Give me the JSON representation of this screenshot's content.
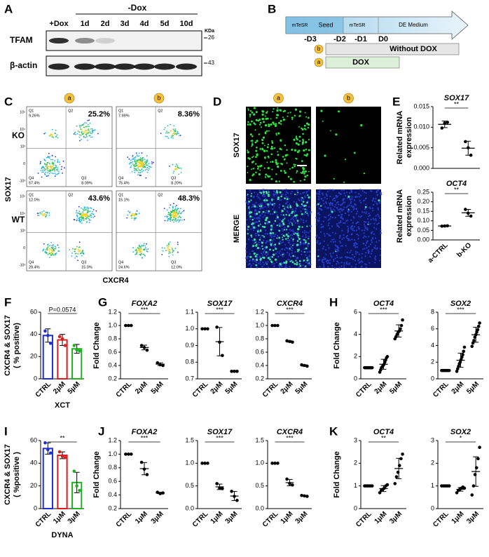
{
  "panel_labels": [
    "A",
    "B",
    "C",
    "D",
    "E",
    "F",
    "G",
    "H",
    "I",
    "J",
    "K"
  ],
  "blot": {
    "treatment_header": "-Dox",
    "lanes": [
      "+Dox",
      "1d",
      "2d",
      "3d",
      "4d",
      "5d",
      "10d"
    ],
    "kda_label": "KDa",
    "rows": [
      "TFAM",
      "β-actin"
    ],
    "markers": [
      "26",
      "43"
    ]
  },
  "timeline": {
    "stages": [
      "mTeSR",
      "Seed",
      "mTeSR",
      "DE Medium"
    ],
    "days": [
      "-D3",
      "-D2",
      "-D1",
      "D0"
    ],
    "conditions": [
      {
        "badge": "b",
        "label": "Without DOX"
      },
      {
        "badge": "a",
        "label": "DOX"
      }
    ]
  },
  "flow": {
    "badges": [
      "a",
      "b"
    ],
    "rows": [
      "KO",
      "WT"
    ],
    "y_axis": "SOX17",
    "x_axis": "CXCR4",
    "quadrant_names": [
      "Q1",
      "Q2",
      "Q3",
      "Q4"
    ],
    "axis_ticks": [
      "10⁵",
      "10⁴",
      "10³",
      "0",
      "-10³"
    ],
    "plots": [
      {
        "Q1": "9.26%",
        "Q2": "25.2%",
        "Q3": "8.09%",
        "Q4": "57.4%"
      },
      {
        "Q1": "7.99%",
        "Q2": "8.36%",
        "Q3": "8.20%",
        "Q4": "75.4%"
      },
      {
        "Q1": "12.0%",
        "Q2": "43.6%",
        "Q3": "15.0%",
        "Q4": "29.4%"
      },
      {
        "Q1": "15.1%",
        "Q2": "48.3%",
        "Q3": "12.0%",
        "Q4": "24.6%"
      }
    ]
  },
  "imaging": {
    "badges": [
      "a",
      "b"
    ],
    "rows": [
      "SOX17",
      "MERGE"
    ]
  },
  "chart_data": [
    {
      "type": "dotplot",
      "title": "SOX17",
      "ylabel": [
        "Related mRNA",
        "expression"
      ],
      "categories": [
        null,
        null
      ],
      "values": [
        0.0107,
        0.0049
      ],
      "errors": [
        0.0008,
        0.0017
      ],
      "points": [
        [
          0.0098,
          0.011,
          0.0112
        ],
        [
          0.0065,
          0.005,
          0.0032
        ]
      ],
      "ylim": [
        0,
        0.015
      ],
      "yticks": [
        {
          "value": 0,
          "label": "0.000"
        },
        {
          "value": 0.005,
          "label": "0.005"
        },
        {
          "value": 0.01,
          "label": "0.010"
        },
        {
          "value": 0.015,
          "label": "0.015"
        }
      ],
      "annotation": "**",
      "color": "#000000"
    },
    {
      "type": "dotplot",
      "title": "OCT4",
      "ylabel": [
        "Related mRNA",
        "expression"
      ],
      "categories": [
        "a-CTRL",
        "b-KO"
      ],
      "values": [
        0.073,
        0.142
      ],
      "errors": [
        0.001,
        0.018
      ],
      "points": [
        [
          0.072,
          0.073,
          0.074
        ],
        [
          0.16,
          0.14,
          0.125
        ]
      ],
      "ylim": [
        0,
        0.25
      ],
      "yticks": [
        {
          "value": 0,
          "label": "0.00"
        },
        {
          "value": 0.05,
          "label": "0.05"
        },
        {
          "value": 0.1,
          "label": "0.10"
        },
        {
          "value": 0.15,
          "label": "0.15"
        },
        {
          "value": 0.2,
          "label": "0.20"
        },
        {
          "value": 0.25,
          "label": "0.25"
        }
      ],
      "annotation": "**",
      "color": "#000000"
    },
    {
      "type": "bar",
      "ylabel": [
        "CXCR4 & SOX17",
        "( % positive)"
      ],
      "xlabel": "XCT",
      "categories": [
        "CTRL",
        "2μM",
        "5μM"
      ],
      "values": [
        39,
        35,
        27
      ],
      "errors": [
        6,
        5,
        4
      ],
      "points": [
        [
          43,
          39,
          32
        ],
        [
          38,
          36,
          30
        ],
        [
          30,
          26,
          25
        ]
      ],
      "colors": [
        "#1f2fd6",
        "#d62020",
        "#22b022"
      ],
      "ylim": [
        0,
        60
      ],
      "yticks": [
        0,
        20,
        40,
        60
      ],
      "annotation": "P=0.0574"
    },
    {
      "type": "dotplot",
      "title": "FOXA2",
      "ylabel": [
        "Fold Change"
      ],
      "categories": [
        "CTRL",
        "2μM",
        "5μM"
      ],
      "values": [
        1,
        0.67,
        0.42
      ],
      "errors": [
        0,
        0.035,
        0.02
      ],
      "points": [
        [
          1,
          1,
          1
        ],
        [
          0.7,
          0.67,
          0.63
        ],
        [
          0.44,
          0.41,
          0.4
        ]
      ],
      "ylim": [
        0.2,
        1.2
      ],
      "yticks": [
        0.2,
        0.4,
        0.6,
        0.8,
        {
          "value": 1,
          "label": "1.0"
        },
        1.2
      ],
      "annotation": "***",
      "color": "#000000"
    },
    {
      "type": "dotplot",
      "title": "SOX17",
      "categories": [
        "CTRL",
        "2μM",
        "5μM"
      ],
      "values": [
        1,
        0.923,
        0.745
      ],
      "errors": [
        0,
        0.085,
        0.003
      ],
      "points": [
        [
          1,
          1,
          1
        ],
        [
          1.01,
          0.92,
          0.84
        ],
        [
          0.745,
          0.745,
          0.745
        ]
      ],
      "ylim": [
        0.7,
        1.1
      ],
      "yticks": [
        0.7,
        0.8,
        0.9,
        {
          "value": 1,
          "label": "1.0"
        },
        1.1
      ],
      "annotation": "***",
      "color": "#000000"
    },
    {
      "type": "dotplot",
      "title": "CXCR4",
      "categories": [
        "CTRL",
        "2μM",
        "5μM"
      ],
      "values": [
        1,
        0.76,
        0.4
      ],
      "errors": [
        0,
        0.01,
        0.01
      ],
      "points": [
        [
          1,
          1,
          1
        ],
        [
          0.77,
          0.76,
          0.75
        ],
        [
          0.41,
          0.4,
          0.39
        ]
      ],
      "ylim": [
        0.2,
        1.2
      ],
      "yticks": [
        0.2,
        0.4,
        0.6,
        0.8,
        {
          "value": 1,
          "label": "1.0"
        },
        1.2
      ],
      "annotation": "***",
      "color": "#000000"
    },
    {
      "type": "dotplot",
      "title": "OCT4",
      "ylabel": [
        "Fold Change"
      ],
      "categories": [
        "CTRL",
        "2μM",
        "5μM"
      ],
      "values": [
        1,
        1.31,
        4.31
      ],
      "errors": [
        0,
        0.45,
        0.55
      ],
      "points": [
        [
          1,
          1,
          1,
          1,
          1,
          1,
          1,
          1,
          1
        ],
        [
          0.6,
          0.8,
          1,
          1.1,
          1.2,
          1.3,
          1.5,
          1.7,
          1.9,
          2
        ],
        [
          3.6,
          3.8,
          4,
          4.2,
          4.3,
          4.5,
          4.8,
          5.3
        ]
      ],
      "ylim": [
        0,
        6
      ],
      "yticks": [
        0,
        2,
        4,
        6
      ],
      "annotation": "***",
      "color": "#000000"
    },
    {
      "type": "dotplot",
      "title": "SOX2",
      "categories": [
        "CTRL",
        "2μM",
        "5μM"
      ],
      "values": [
        1,
        2.23,
        5.29
      ],
      "errors": [
        0,
        0.85,
        0.9
      ],
      "points": [
        [
          1,
          1,
          1,
          1,
          1,
          1,
          1,
          1,
          1
        ],
        [
          0.9,
          1.2,
          1.5,
          1.8,
          2,
          2.3,
          2.6,
          2.9,
          3.3,
          3.8
        ],
        [
          3.9,
          4.3,
          4.6,
          5,
          5.3,
          5.6,
          5.9,
          6.3,
          6.7
        ]
      ],
      "ylim": [
        0,
        8
      ],
      "yticks": [
        0,
        2,
        4,
        6,
        8
      ],
      "annotation": "***",
      "color": "#000000"
    },
    {
      "type": "bar",
      "ylabel": [
        "CXCR4 & SOX17",
        "( %positive )"
      ],
      "xlabel": "DYNA",
      "categories": [
        "CTRL",
        "1μM",
        "3μM"
      ],
      "values": [
        53,
        47,
        23
      ],
      "errors": [
        5,
        3,
        9
      ],
      "points": [
        [
          58,
          52,
          49
        ],
        [
          50,
          46,
          45
        ],
        [
          33,
          20,
          16
        ]
      ],
      "colors": [
        "#1f2fd6",
        "#d62020",
        "#22b022"
      ],
      "ylim": [
        0,
        60
      ],
      "yticks": [
        0,
        20,
        40,
        60
      ],
      "annotation": "**"
    },
    {
      "type": "dotplot",
      "title": "FOXA2",
      "ylabel": [
        "Fold Change"
      ],
      "categories": [
        "CTRL",
        "1μM",
        "3μM"
      ],
      "values": [
        1,
        0.787,
        0.43
      ],
      "errors": [
        0,
        0.09,
        0.01
      ],
      "points": [
        [
          1,
          1,
          1
        ],
        [
          0.88,
          0.78,
          0.7
        ],
        [
          0.44,
          0.42,
          0.43
        ]
      ],
      "ylim": [
        0.2,
        1.2
      ],
      "yticks": [
        0.2,
        0.4,
        0.6,
        0.8,
        {
          "value": 1,
          "label": "1.0"
        },
        1.2
      ],
      "annotation": "***",
      "color": "#000000"
    },
    {
      "type": "dotplot",
      "title": "SOX17",
      "categories": [
        "CTRL",
        "1μM",
        "3μM"
      ],
      "values": [
        1,
        0.48,
        0.277
      ],
      "errors": [
        0,
        0.06,
        0.1
      ],
      "points": [
        [
          1,
          1,
          1
        ],
        [
          0.55,
          0.45,
          0.44
        ],
        [
          0.38,
          0.27,
          0.18
        ]
      ],
      "ylim": [
        0,
        1.5
      ],
      "yticks": [
        {
          "value": 0,
          "label": "0.0"
        },
        0.5,
        {
          "value": 1,
          "label": "1.0"
        },
        1.5
      ],
      "annotation": "***",
      "color": "#000000"
    },
    {
      "type": "dotplot",
      "title": "CXCR4",
      "categories": [
        "CTRL",
        "1μM",
        "3μM"
      ],
      "values": [
        1,
        0.573,
        0.28
      ],
      "errors": [
        0,
        0.07,
        0.01
      ],
      "points": [
        [
          1,
          1,
          1
        ],
        [
          0.65,
          0.55,
          0.52
        ],
        [
          0.29,
          0.28,
          0.27
        ]
      ],
      "ylim": [
        0,
        1.5
      ],
      "yticks": [
        {
          "value": 0,
          "label": "0.0"
        },
        0.5,
        {
          "value": 1,
          "label": "1.0"
        },
        1.5
      ],
      "annotation": "***",
      "color": "#000000"
    },
    {
      "type": "dotplot",
      "title": "OCT4",
      "ylabel": [
        "Fold Change"
      ],
      "categories": [
        "CTRL",
        "1μM",
        "3μM"
      ],
      "values": [
        1,
        0.883,
        1.767
      ],
      "errors": [
        0,
        0.13,
        0.45
      ],
      "points": [
        [
          1,
          1,
          1,
          1,
          1,
          1
        ],
        [
          0.7,
          0.8,
          0.85,
          0.9,
          1,
          1.05
        ],
        [
          1.1,
          1.4,
          1.6,
          1.9,
          2.2,
          2.4
        ]
      ],
      "ylim": [
        0,
        3
      ],
      "yticks": [
        0,
        1,
        2,
        3
      ],
      "annotation": "**",
      "color": "#000000"
    },
    {
      "type": "dotplot",
      "title": "SOX2",
      "categories": [
        "CTRL",
        "1μM",
        "3μM"
      ],
      "values": [
        1,
        0.85,
        1.633
      ],
      "errors": [
        0,
        0.08,
        0.65
      ],
      "points": [
        [
          1,
          1,
          1,
          1,
          1,
          1
        ],
        [
          0.7,
          0.8,
          0.85,
          0.9,
          0.95,
          0.9
        ],
        [
          0.6,
          1,
          1.5,
          1.8,
          2.2,
          2.7
        ]
      ],
      "ylim": [
        0,
        3
      ],
      "yticks": [
        0,
        1,
        2,
        3
      ],
      "annotation": "*",
      "color": "#000000"
    }
  ]
}
